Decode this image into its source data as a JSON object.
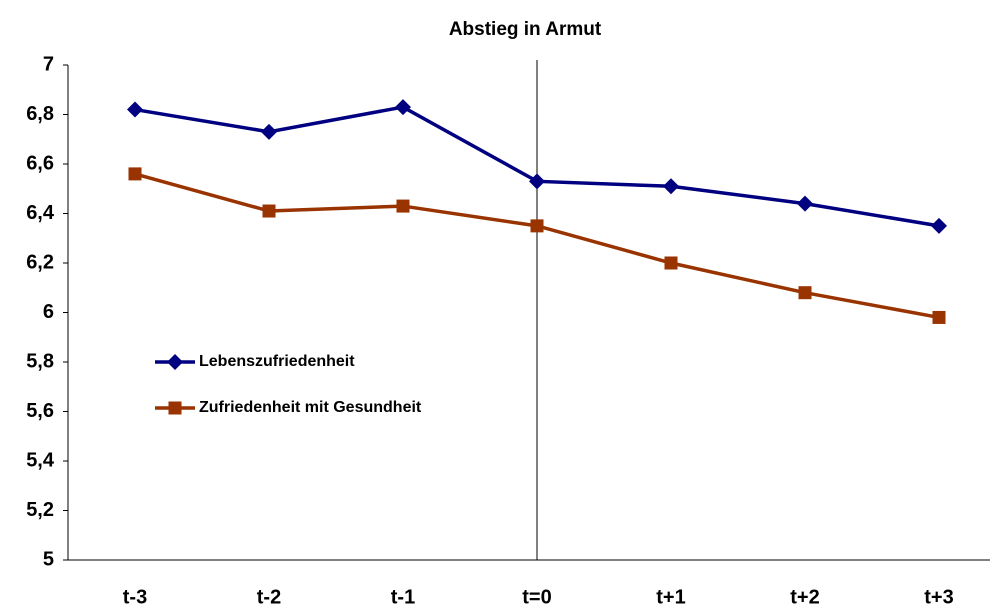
{
  "chart_data": {
    "type": "line",
    "title": "Abstieg in Armut",
    "categories": [
      "t-3",
      "t-2",
      "t-1",
      "t=0",
      "t+1",
      "t+2",
      "t+3"
    ],
    "series": [
      {
        "name": "Lebenszufriedenheit",
        "color": "#000080",
        "marker": "diamond",
        "values": [
          6.82,
          6.73,
          6.83,
          6.53,
          6.51,
          6.44,
          6.35
        ]
      },
      {
        "name": "Zufriedenheit mit Gesundheit",
        "color": "#993300",
        "marker": "square",
        "values": [
          6.56,
          6.41,
          6.43,
          6.35,
          6.2,
          6.08,
          5.98
        ]
      }
    ],
    "ylim": [
      5,
      7
    ],
    "yticks": [
      5,
      {
        "value": 5.2,
        "label": "5,2"
      },
      {
        "value": 5.4,
        "label": "5,4"
      },
      {
        "value": 5.6,
        "label": "5,6"
      },
      {
        "value": 5.8,
        "label": "5,8"
      },
      6,
      {
        "value": 6.2,
        "label": "6,2"
      },
      {
        "value": 6.4,
        "label": "6,4"
      },
      {
        "value": 6.6,
        "label": "6,6"
      },
      {
        "value": 6.8,
        "label": "6,8"
      },
      7
    ],
    "vertical_line_at": "t=0",
    "legend": "left"
  }
}
